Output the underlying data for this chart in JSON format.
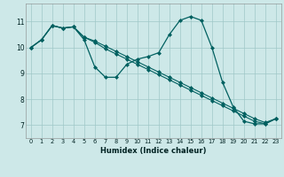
{
  "xlabel": "Humidex (Indice chaleur)",
  "background_color": "#cde8e8",
  "grid_color": "#a0c8c8",
  "line_color": "#006060",
  "xlim": [
    -0.5,
    23.5
  ],
  "ylim": [
    6.5,
    11.7
  ],
  "xticks": [
    0,
    1,
    2,
    3,
    4,
    5,
    6,
    7,
    8,
    9,
    10,
    11,
    12,
    13,
    14,
    15,
    16,
    17,
    18,
    19,
    20,
    21,
    22,
    23
  ],
  "yticks": [
    7,
    8,
    9,
    10,
    11
  ],
  "series": [
    [
      10.0,
      10.3,
      10.85,
      10.75,
      10.8,
      10.3,
      9.25,
      8.85,
      8.85,
      9.35,
      9.55,
      9.65,
      9.8,
      10.5,
      11.05,
      11.2,
      11.05,
      10.0,
      8.65,
      7.7,
      7.15,
      7.05,
      7.05,
      7.25
    ],
    [
      10.0,
      10.3,
      10.85,
      10.75,
      10.8,
      10.4,
      10.25,
      10.05,
      9.85,
      9.65,
      9.45,
      9.25,
      9.05,
      8.85,
      8.65,
      8.45,
      8.25,
      8.05,
      7.85,
      7.65,
      7.45,
      7.25,
      7.1,
      7.25
    ],
    [
      10.0,
      10.3,
      10.85,
      10.75,
      10.8,
      10.4,
      10.2,
      9.95,
      9.75,
      9.55,
      9.35,
      9.15,
      8.95,
      8.75,
      8.55,
      8.35,
      8.15,
      7.95,
      7.75,
      7.55,
      7.35,
      7.15,
      7.05,
      7.25
    ]
  ]
}
